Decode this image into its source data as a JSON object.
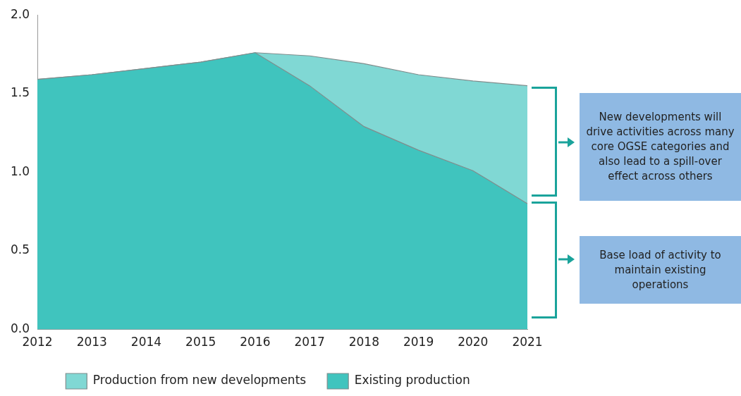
{
  "chart_data": {
    "type": "area",
    "stacked": true,
    "categories": [
      "2012",
      "2013",
      "2014",
      "2015",
      "2016",
      "2017",
      "2018",
      "2019",
      "2020",
      "2021"
    ],
    "series": [
      {
        "name": "Existing production",
        "color": "#40c4be",
        "values": [
          1.59,
          1.62,
          1.66,
          1.7,
          1.76,
          1.55,
          1.29,
          1.14,
          1.01,
          0.8
        ]
      },
      {
        "name": "Production from new developments",
        "color": "#80d8d4",
        "values": [
          0,
          0,
          0,
          0,
          0,
          0.19,
          0.4,
          0.48,
          0.57,
          0.75
        ]
      }
    ],
    "ylim": [
      0,
      2
    ],
    "yticks": [
      {
        "value": 0,
        "label": "0.0"
      },
      {
        "value": 0.5,
        "label": "0.5"
      },
      {
        "value": 1,
        "label": "1.0"
      },
      {
        "value": 1.5,
        "label": "1.5"
      },
      {
        "value": 2,
        "label": "2.0"
      }
    ],
    "grid": false,
    "legend": "bottom",
    "annotations": [
      "New developments will drive activities across many core OGSE categories and also lead to a spill-over effect across others",
      "Base load of activity to maintain existing operations"
    ]
  }
}
